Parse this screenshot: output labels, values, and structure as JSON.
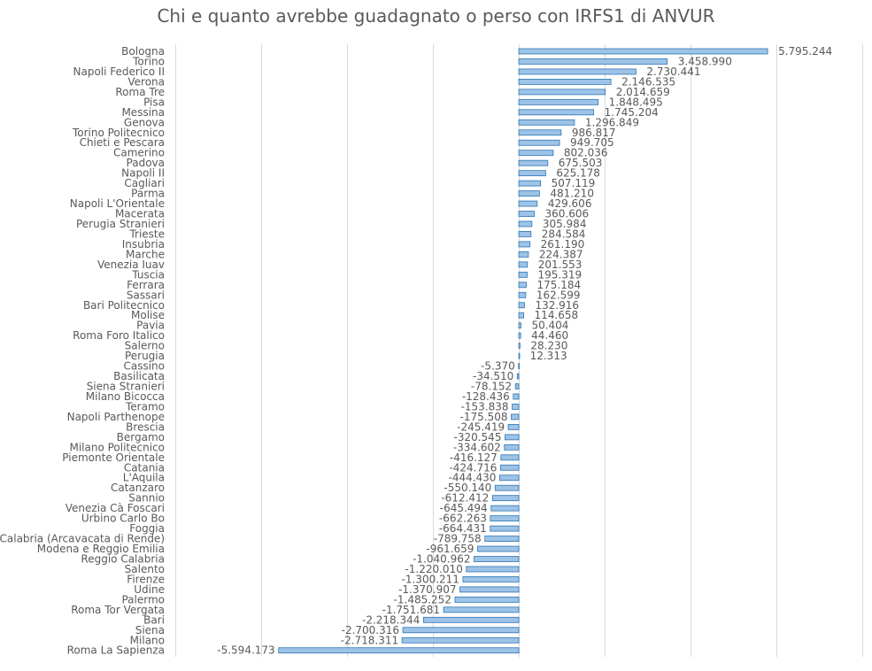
{
  "chart_data": {
    "type": "bar",
    "orientation": "horizontal",
    "title": "Chi e quanto avrebbe guadagnato o perso con IRFS1 di ANVUR",
    "xlabel": "",
    "ylabel": "",
    "xlim": [
      -8000000,
      8000000
    ],
    "grid": true,
    "legend": "none",
    "colors": {
      "bar_fill": "#9dc3e6",
      "bar_stroke": "#2e75b6",
      "grid": "#d9d9d9",
      "text": "#595959"
    },
    "categories": [
      "Bologna",
      "Torino",
      "Napoli Federico II",
      "Verona",
      "Roma Tre",
      "Pisa",
      "Messina",
      "Genova",
      "Torino Politecnico",
      "Chieti e Pescara",
      "Camerino",
      "Padova",
      "Napoli II",
      "Cagliari",
      "Parma",
      "Napoli L'Orientale",
      "Macerata",
      "Perugia Stranieri",
      "Trieste",
      "Insubria",
      "Marche",
      "Venezia Iuav",
      "Tuscia",
      "Ferrara",
      "Sassari",
      "Bari Politecnico",
      "Molise",
      "Pavia",
      "Roma Foro Italico",
      "Salerno",
      "Perugia",
      "Cassino",
      "Basilicata",
      "Siena Stranieri",
      "Milano Bicocca",
      "Teramo",
      "Napoli Parthenope",
      "Brescia",
      "Bergamo",
      "Milano Politecnico",
      "Piemonte Orientale",
      "Catania",
      "L'Aquila",
      "Catanzaro",
      "Sannio",
      "Venezia Cà Foscari",
      "Urbino Carlo Bo",
      "Foggia",
      "Calabria (Arcavacata di Rende)",
      "Modena e Reggio Emilia",
      "Reggio Calabria",
      "Salento",
      "Firenze",
      "Udine",
      "Palermo",
      "Roma Tor Vergata",
      "Bari",
      "Siena",
      "Milano",
      "Roma La Sapienza"
    ],
    "values": [
      5795244,
      3458990,
      2730441,
      2146535,
      2014659,
      1848495,
      1745204,
      1296849,
      986817,
      949705,
      802036,
      675503,
      625178,
      507119,
      481210,
      429606,
      360606,
      305984,
      284584,
      261190,
      224387,
      201553,
      195319,
      175184,
      162599,
      132916,
      114658,
      50404,
      44460,
      28230,
      12313,
      -5370,
      -34510,
      -78152,
      -128436,
      -153838,
      -175508,
      -245419,
      -320545,
      -334602,
      -416127,
      -424716,
      -444430,
      -550140,
      -612412,
      -645494,
      -662263,
      -664431,
      -789758,
      -961659,
      -1040962,
      -1220010,
      -1300211,
      -1370907,
      -1485252,
      -1751681,
      -2218344,
      -2700316,
      -2718311,
      -5594173
    ],
    "value_labels": [
      "5.795.244",
      "3.458.990",
      "2.730.441",
      "2.146.535",
      "2.014.659",
      "1.848.495",
      "1.745.204",
      "1.296.849",
      "986.817",
      "949.705",
      "802.036",
      "675.503",
      "625.178",
      "507.119",
      "481.210",
      "429.606",
      "360.606",
      "305.984",
      "284.584",
      "261.190",
      "224.387",
      "201.553",
      "195.319",
      "175.184",
      "162.599",
      "132.916",
      "114.658",
      "50.404",
      "44.460",
      "28.230",
      "12.313",
      "-5.370",
      "-34.510",
      "-78.152",
      "-128.436",
      "-153.838",
      "-175.508",
      "-245.419",
      "-320.545",
      "-334.602",
      "-416.127",
      "-424.716",
      "-444.430",
      "-550.140",
      "-612.412",
      "-645.494",
      "-662.263",
      "-664.431",
      "-789.758",
      "-961.659",
      "-1.040.962",
      "-1.220.010",
      "-1.300.211",
      "-1.370.907",
      "-1.485.252",
      "-1.751.681",
      "-2.218.344",
      "-2.700.316",
      "-2.718.311",
      "-5.594.173"
    ]
  }
}
